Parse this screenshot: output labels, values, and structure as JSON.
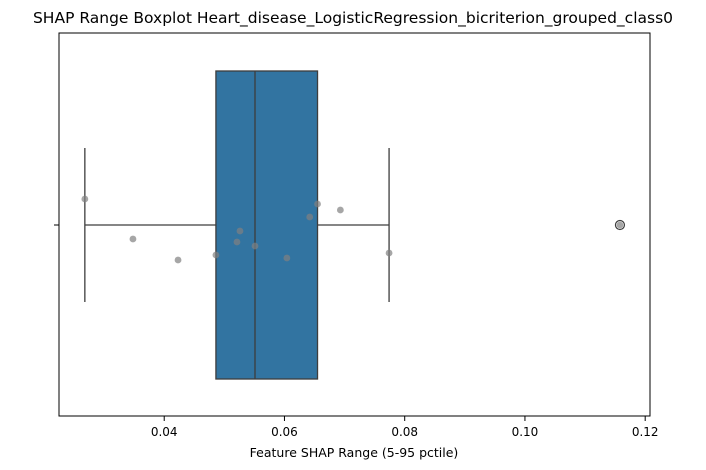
{
  "chart_data": {
    "type": "boxplot",
    "title": "SHAP Range Boxplot Heart_disease_LogisticRegression_bicriterion_grouped_class0",
    "xlabel": "Feature SHAP Range (5-95 pctile)",
    "ylabel": "",
    "xlim": [
      0.0225,
      0.1208
    ],
    "x_ticks": [
      0.04,
      0.06,
      0.08,
      0.1,
      0.12
    ],
    "x_tick_labels": [
      "0.04",
      "0.06",
      "0.08",
      "0.10",
      "0.12"
    ],
    "grid": false,
    "box": {
      "whisker_low": 0.0268,
      "q1": 0.0486,
      "median": 0.0551,
      "q3": 0.0655,
      "whisker_high": 0.0774,
      "outliers": [
        0.1158
      ]
    },
    "points": [
      {
        "x": 0.0268,
        "jitter": -0.26
      },
      {
        "x": 0.0348,
        "jitter": 0.14
      },
      {
        "x": 0.0423,
        "jitter": 0.35
      },
      {
        "x": 0.0486,
        "jitter": 0.3
      },
      {
        "x": 0.0521,
        "jitter": 0.17
      },
      {
        "x": 0.0526,
        "jitter": 0.06
      },
      {
        "x": 0.0551,
        "jitter": 0.21
      },
      {
        "x": 0.0604,
        "jitter": 0.33
      },
      {
        "x": 0.0642,
        "jitter": -0.08
      },
      {
        "x": 0.0655,
        "jitter": -0.21
      },
      {
        "x": 0.0693,
        "jitter": -0.15
      },
      {
        "x": 0.0774,
        "jitter": 0.28
      },
      {
        "x": 0.1158,
        "jitter": 0.0
      }
    ],
    "colors": {
      "box_fill": "#3274a1",
      "lines": "#3d3d3d",
      "points": "#808080"
    }
  }
}
